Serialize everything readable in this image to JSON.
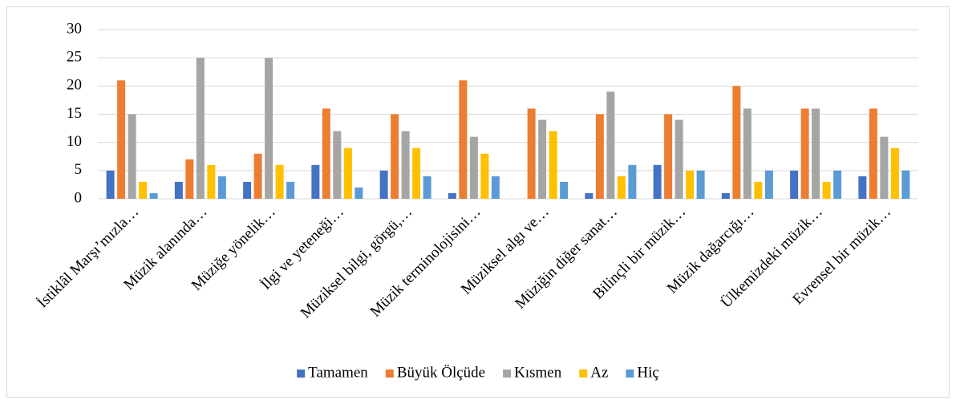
{
  "chart_data": {
    "type": "bar",
    "categories": [
      "İstiklâl Marşı’mızla…",
      "Müzik alanında…",
      "Müziğe yönelik…",
      "İlgi ve yeteneği…",
      "Müziksel bilgi, görgü,…",
      "Müzik terminolojisini…",
      "Müziksel algı ve…",
      "Müziğin diğer sanat…",
      "Bilinçli bir müzik…",
      "Müzik dağarcığı…",
      "Ülkemizdeki müzik…",
      "Evrensel bir müzik…"
    ],
    "series": [
      {
        "name": "Tamamen",
        "color": "#4472c4",
        "values": [
          5,
          3,
          3,
          6,
          5,
          1,
          0,
          1,
          6,
          1,
          5,
          4
        ]
      },
      {
        "name": "Büyük Ölçüde",
        "color": "#ed7d31",
        "values": [
          21,
          7,
          8,
          16,
          15,
          21,
          16,
          15,
          15,
          20,
          16,
          16
        ]
      },
      {
        "name": "Kısmen",
        "color": "#a5a5a5",
        "values": [
          15,
          25,
          25,
          12,
          12,
          11,
          14,
          19,
          14,
          16,
          16,
          11
        ]
      },
      {
        "name": "Az",
        "color": "#ffc000",
        "values": [
          3,
          6,
          6,
          9,
          9,
          8,
          12,
          4,
          5,
          3,
          3,
          9
        ]
      },
      {
        "name": "Hiç",
        "color": "#5b9bd5",
        "values": [
          1,
          4,
          3,
          2,
          4,
          4,
          3,
          6,
          5,
          5,
          5,
          5
        ]
      }
    ],
    "ylim": [
      0,
      30
    ],
    "yticks": [
      0,
      5,
      10,
      15,
      20,
      25,
      30
    ],
    "grid": true,
    "legend": "bottom"
  }
}
